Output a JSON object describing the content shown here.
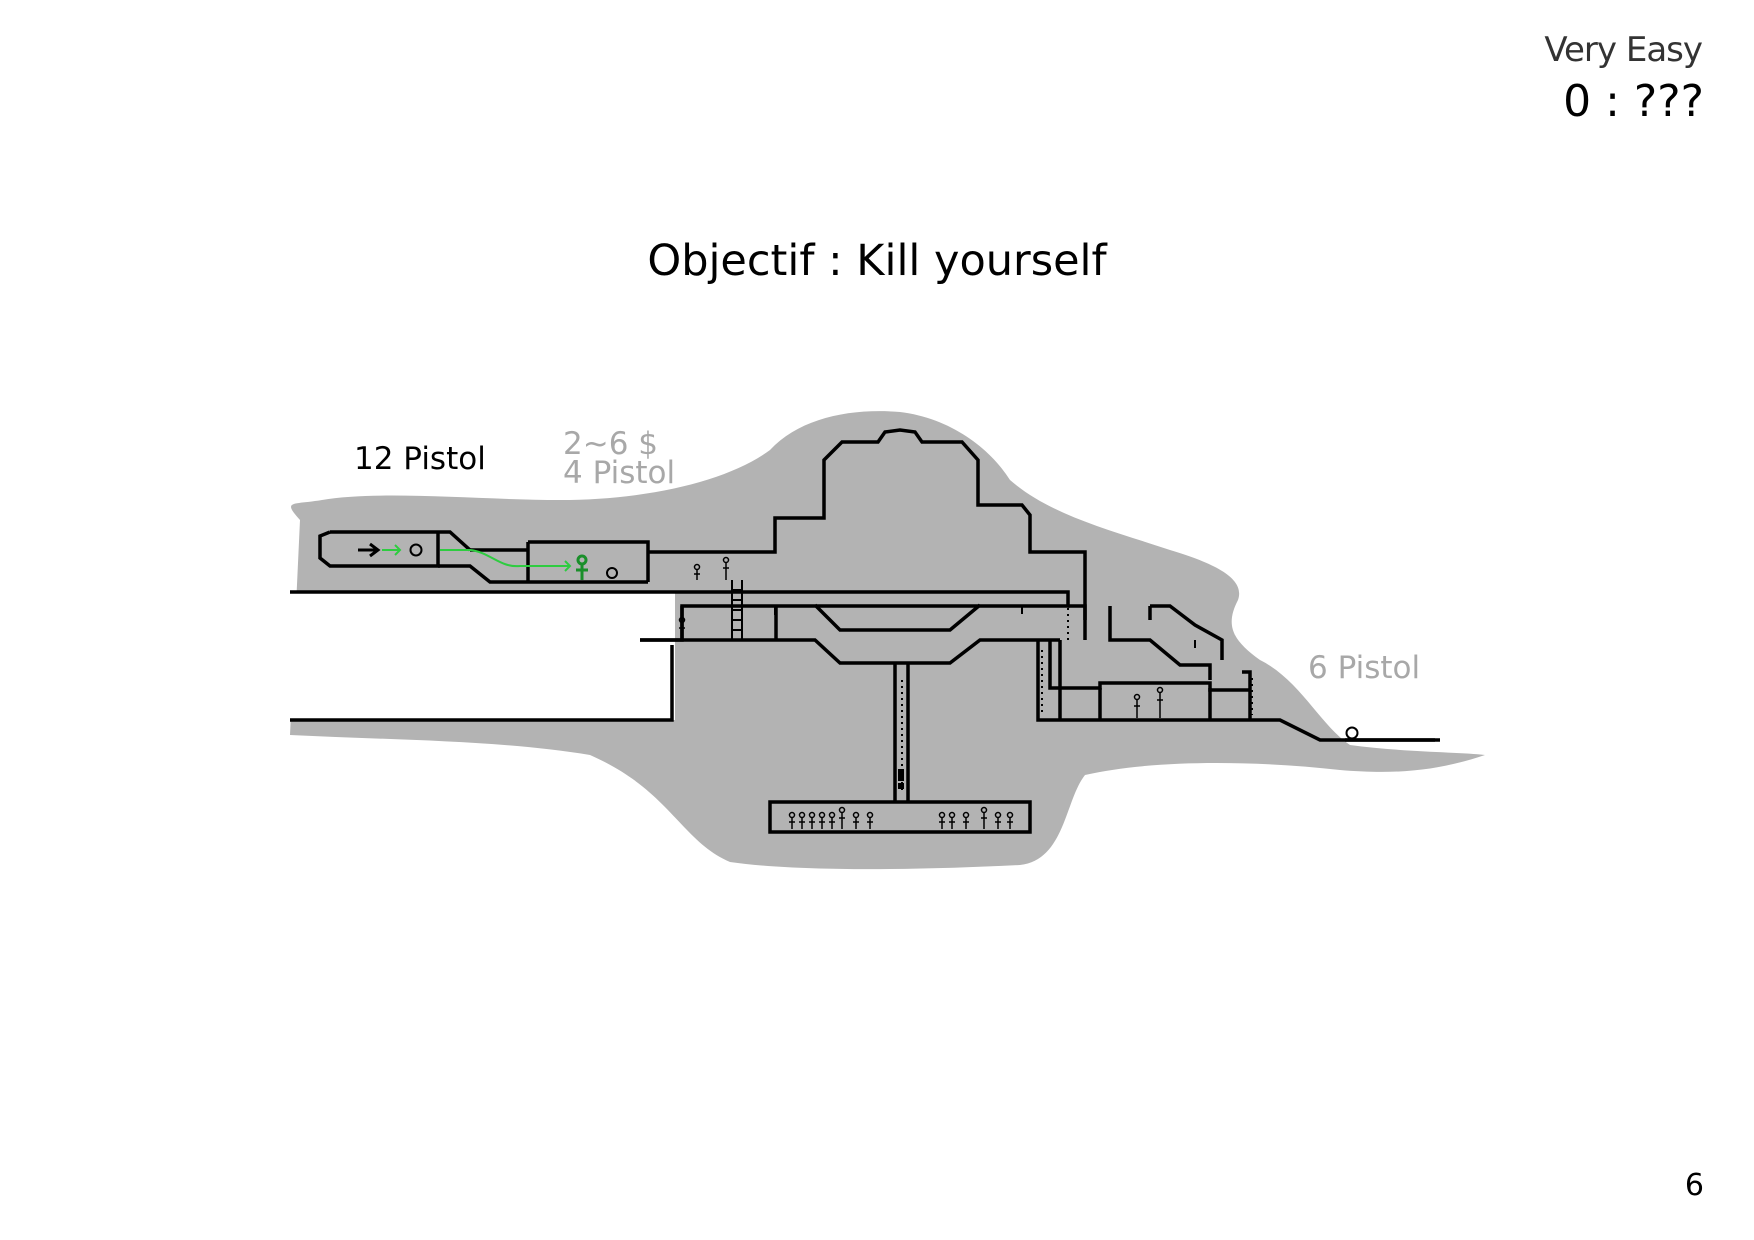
{
  "header": {
    "difficulty": "Very Easy",
    "score": "0 : ???"
  },
  "objective": "Objectif : Kill yourself",
  "map": {
    "labels": {
      "start_weapon": "12 Pistol",
      "loot_money": "2~6 $",
      "loot_weapon": "4 Pistol",
      "exit_weapon": "6 Pistol"
    },
    "colors": {
      "terrain": "#b3b3b3",
      "walls": "#000000",
      "route": "#2ecc40",
      "loot_text": "#a8a8a8"
    }
  },
  "page_number": "6"
}
